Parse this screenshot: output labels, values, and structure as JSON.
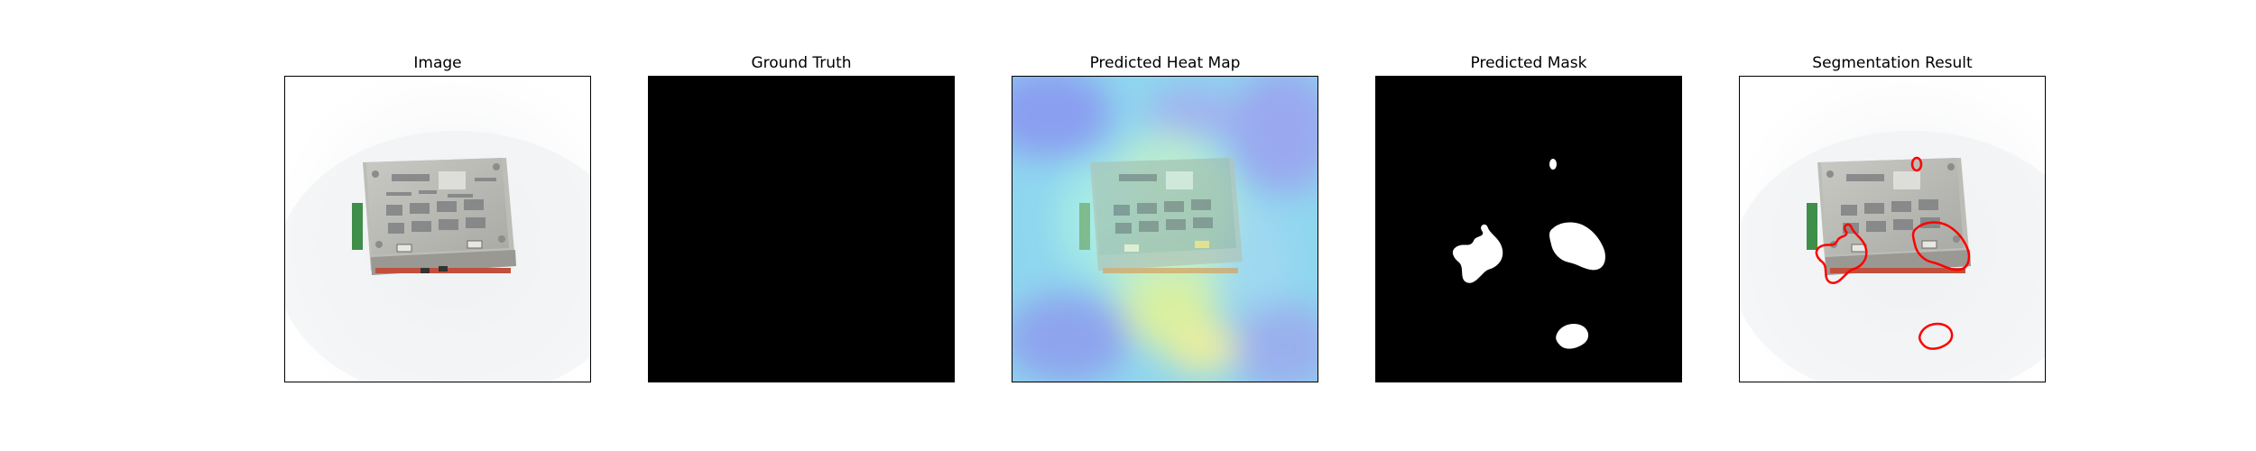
{
  "figure": {
    "panels": [
      {
        "id": "image",
        "title": "Image"
      },
      {
        "id": "ground-truth",
        "title": "Ground Truth"
      },
      {
        "id": "heat-map",
        "title": "Predicted Heat Map"
      },
      {
        "id": "mask",
        "title": "Predicted Mask"
      },
      {
        "id": "segmentation",
        "title": "Segmentation Result"
      }
    ],
    "colors": {
      "mask_background": "#000000",
      "mask_foreground": "#ffffff",
      "contour": "#ff0000",
      "heat_low": "#7f9ef0",
      "heat_mid": "#8be9f2",
      "heat_high": "#f0f07a"
    }
  }
}
